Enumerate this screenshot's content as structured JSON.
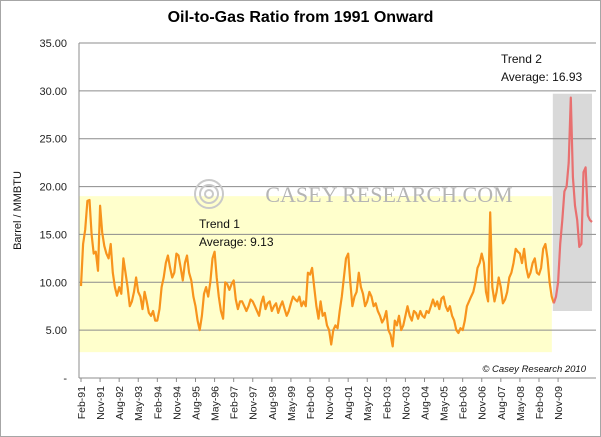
{
  "chart_data": {
    "type": "line",
    "title": "Oil-to-Gas Ratio from 1991 Onward",
    "ylabel": "Barrel / MMBTU",
    "xlabel": "",
    "ylim": [
      0,
      35
    ],
    "yticks": [
      "35.00",
      "30.00",
      "25.00",
      "20.00",
      "15.00",
      "10.00",
      "5.00",
      "-"
    ],
    "xticks": [
      "Feb-91",
      "Nov-91",
      "Aug-92",
      "May-93",
      "Feb-94",
      "Nov-94",
      "Aug-95",
      "May-96",
      "Feb-97",
      "Nov-97",
      "Aug-98",
      "May-99",
      "Feb-00",
      "Nov-00",
      "Aug-01",
      "May-02",
      "Feb-03",
      "Nov-03",
      "Aug-04",
      "May-05",
      "Feb-06",
      "Nov-06",
      "Aug-07",
      "May-08",
      "Feb-09",
      "Nov-09"
    ],
    "grid": true,
    "series": [
      {
        "color": "#f7941d",
        "values": [
          9.6,
          14.0,
          15.5,
          18.5,
          18.6,
          15.0,
          13.0,
          13.2,
          11.2,
          18.0,
          15.2,
          13.8,
          13.0,
          12.5,
          14.0,
          11.0,
          9.5,
          8.6,
          9.5,
          8.8,
          12.5,
          11.0,
          9.5,
          7.5,
          8.0,
          9.0,
          10.5,
          9.0,
          8.5,
          7.2,
          9.0,
          8.0,
          6.8,
          6.5,
          7.0,
          6.0,
          6.0,
          7.2,
          9.5,
          10.5,
          12.0,
          12.8,
          11.5,
          10.5,
          11.0,
          13.0,
          12.8,
          11.5,
          10.2,
          12.0,
          12.8,
          11.0,
          10.2,
          8.5,
          7.5,
          6.0,
          5.0,
          6.5,
          8.8,
          9.5,
          8.5,
          10.0,
          12.5,
          13.2,
          10.5,
          8.5,
          7.0,
          6.2,
          10.0,
          9.8,
          9.2,
          9.8,
          10.2,
          8.2,
          7.2,
          8.0,
          8.0,
          7.5,
          7.0,
          7.5,
          8.2,
          8.0,
          7.5,
          7.0,
          6.5,
          7.8,
          8.5,
          7.2,
          7.8,
          8.0,
          7.0,
          7.5,
          7.8,
          6.8,
          7.5,
          8.0,
          7.2,
          6.5,
          7.0,
          7.8,
          8.5,
          8.2,
          8.0,
          8.5,
          7.5,
          8.0,
          7.5,
          11.0,
          10.8,
          11.5,
          9.5,
          7.5,
          6.2,
          8.0,
          6.5,
          6.8,
          5.5,
          5.0,
          3.5,
          5.0,
          5.5,
          5.2,
          7.0,
          8.5,
          10.5,
          12.5,
          13.0,
          10.0,
          7.5,
          8.5,
          9.0,
          11.0,
          9.5,
          8.8,
          7.5,
          8.0,
          9.0,
          8.5,
          7.5,
          7.8,
          7.0,
          6.5,
          5.8,
          6.2,
          7.0,
          5.0,
          4.5,
          3.3,
          6.0,
          5.5,
          6.5,
          5.0,
          5.5,
          6.5,
          7.5,
          6.5,
          6.0,
          7.0,
          6.8,
          6.2,
          7.0,
          6.5,
          6.3,
          7.0,
          6.8,
          7.5,
          8.2,
          7.5,
          8.0,
          7.2,
          8.3,
          8.5,
          7.5,
          7.0,
          7.5,
          6.5,
          6.0,
          5.0,
          4.7,
          5.2,
          5.0,
          6.0,
          7.5,
          8.0,
          8.5,
          9.0,
          10.0,
          11.5,
          12.0,
          13.0,
          12.0,
          9.0,
          8.0,
          17.3,
          9.5,
          8.0,
          9.0,
          10.5,
          9.5,
          7.8,
          8.2,
          9.0,
          10.5,
          11.0,
          12.0,
          13.5,
          13.2,
          13.0,
          12.0,
          13.5,
          11.5,
          10.5,
          11.0,
          12.0,
          12.5,
          11.0,
          10.8,
          11.5,
          13.5,
          14.0,
          12.5,
          10.0,
          8.5,
          7.8
        ]
      },
      {
        "color": "#e87070",
        "values": [
          7.8,
          8.5,
          10.0,
          14.0,
          16.5,
          19.5,
          20.0,
          22.5,
          29.3,
          21.0,
          18.0,
          16.5,
          13.7,
          14.0,
          21.5,
          22.0,
          17.0,
          16.5,
          16.3
        ]
      }
    ],
    "regions": [
      {
        "label": "Trend 1",
        "average_label": "Average: 9.13",
        "y_from": 2.7,
        "y_to": 19.0,
        "color": "#ffffcc"
      },
      {
        "label": "Trend 2",
        "average_label": "Average: 16.93",
        "y_from": 7.0,
        "y_to": 29.7,
        "color": "#d9d9d9"
      }
    ],
    "watermark": "CASEY RESEARCH.COM",
    "copyright": "© Casey Research 2010"
  }
}
